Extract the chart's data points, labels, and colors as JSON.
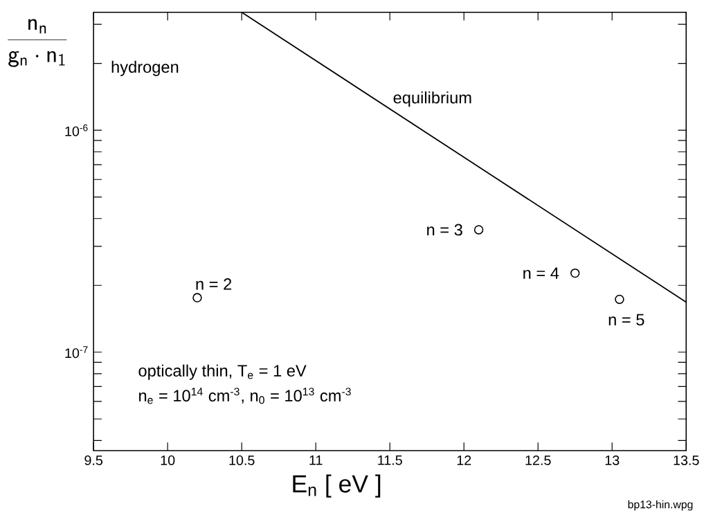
{
  "chart_data": {
    "type": "scatter",
    "ylabel": "\\frac{\\mathsf{n}_\\mathsf{n}}{\\mathsf{g}_\\mathsf{n}\\cdot\\mathsf{n}_\\mathsf{1}}",
    "xlabel": "E$_{n}$ [ eV ]",
    "xlim": [
      9.5,
      13.5
    ],
    "xticks": [
      9.5,
      10,
      10.5,
      11,
      11.5,
      12,
      12.5,
      13,
      13.5
    ],
    "ylim": [
      3.6e-08,
      3.4e-06
    ],
    "log": "y",
    "yticks": [
      {
        "value": 4e-08,
        "label": null
      },
      {
        "value": 5e-08,
        "label": null
      },
      {
        "value": 6e-08,
        "label": null
      },
      {
        "value": 7e-08,
        "label": null
      },
      {
        "value": 8e-08,
        "label": null
      },
      {
        "value": 9e-08,
        "label": null
      },
      {
        "value": 1e-07,
        "label": "10$^{-7}$"
      },
      {
        "value": 2e-07,
        "label": null
      },
      {
        "value": 3e-07,
        "label": null
      },
      {
        "value": 4e-07,
        "label": null
      },
      {
        "value": 5e-07,
        "label": null
      },
      {
        "value": 6e-07,
        "label": null
      },
      {
        "value": 7e-07,
        "label": null
      },
      {
        "value": 8e-07,
        "label": null
      },
      {
        "value": 9e-07,
        "label": null
      },
      {
        "value": 1e-06,
        "label": "10$^{-6}$"
      },
      {
        "value": 2e-06,
        "label": null
      },
      {
        "value": 3e-06,
        "label": null
      }
    ],
    "marker": "circle",
    "series": [
      {
        "name": "equilibrium",
        "type": "line",
        "marker": "none",
        "color": "#000000",
        "x": [
          10.5,
          13.5
        ],
        "values": [
          3.4e-06,
          1.68e-07
        ]
      },
      {
        "color": "#000000",
        "x": [
          10.2,
          12.1,
          12.75,
          13.05
        ],
        "values": [
          1.76e-07,
          3.56e-07,
          2.27e-07,
          1.73e-07
        ]
      }
    ],
    "annotations": [
      "hydrogen",
      {
        "text": "n = 2",
        "x": 10.2,
        "y": 1.76e-07
      },
      {
        "text": "n = 3",
        "x": 12.1,
        "y": 3.56e-07
      },
      {
        "text": "n = 4",
        "x": 12.75,
        "y": 2.27e-07
      },
      {
        "text": "n = 5",
        "x": 13.05,
        "y": 1.73e-07
      },
      "optically thin,  T$_{e}$  = 1 eV",
      "n$_{e}$ = 10$^{14}$  cm$^{-3}$, n$_{0}$ = 10$^{13}$  cm$^{-3}$",
      "bp13-hin.wpg"
    ]
  }
}
